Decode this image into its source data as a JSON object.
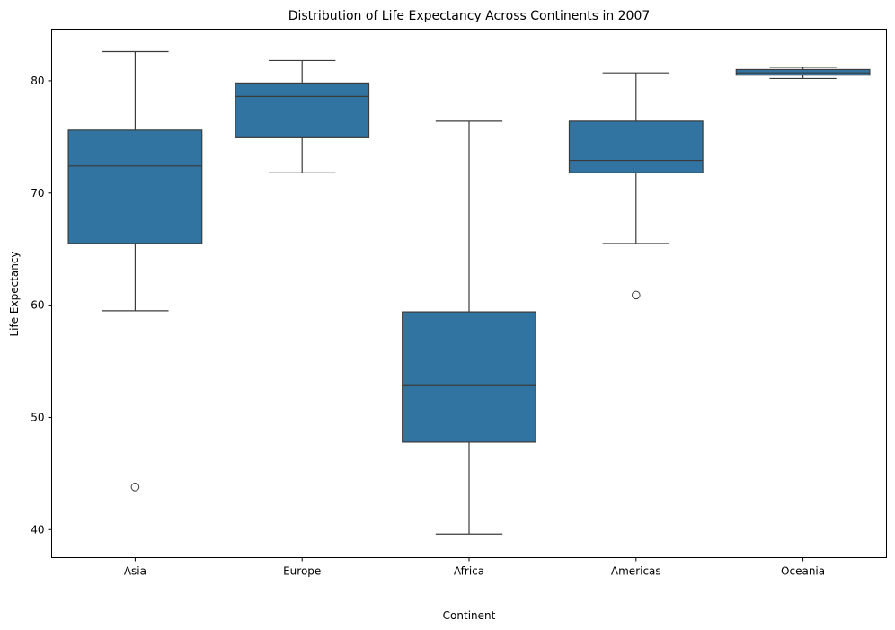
{
  "chart_data": {
    "type": "box",
    "title": "Distribution of Life Expectancy Across Continents in 2007",
    "xlabel": "Continent",
    "ylabel": "Life Expectancy",
    "ylim": [
      37.5,
      84.6
    ],
    "yticks": [
      40,
      50,
      60,
      70,
      80
    ],
    "box_color": "#3274a1",
    "line_color": "#3b3b3b",
    "grid": false,
    "categories": [
      "Asia",
      "Europe",
      "Africa",
      "Americas",
      "Oceania"
    ],
    "boxes": [
      {
        "category": "Asia",
        "whisker_low": 59.5,
        "q1": 65.5,
        "median": 72.4,
        "q3": 75.6,
        "whisker_high": 82.6,
        "outliers": [
          43.8
        ]
      },
      {
        "category": "Europe",
        "whisker_low": 71.8,
        "q1": 75.0,
        "median": 78.6,
        "q3": 79.8,
        "whisker_high": 81.8,
        "outliers": []
      },
      {
        "category": "Africa",
        "whisker_low": 39.6,
        "q1": 47.8,
        "median": 52.9,
        "q3": 59.4,
        "whisker_high": 76.4,
        "outliers": []
      },
      {
        "category": "Americas",
        "whisker_low": 65.5,
        "q1": 71.8,
        "median": 72.9,
        "q3": 76.4,
        "whisker_high": 80.7,
        "outliers": [
          60.9
        ]
      },
      {
        "category": "Oceania",
        "whisker_low": 80.2,
        "q1": 80.5,
        "median": 80.7,
        "q3": 81.0,
        "whisker_high": 81.2,
        "outliers": []
      }
    ]
  }
}
